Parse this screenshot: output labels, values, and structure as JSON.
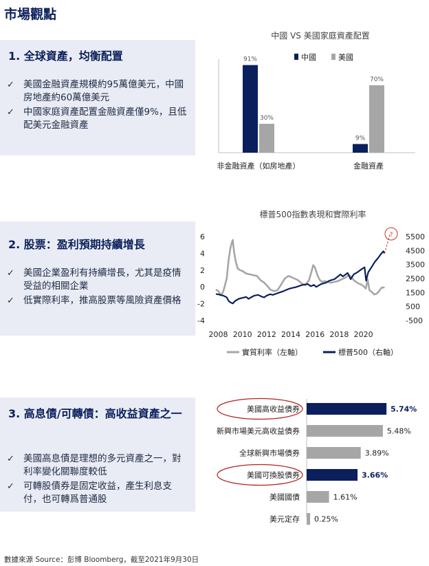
{
  "page_title": "市場觀點",
  "sections": [
    {
      "heading": "1.  全球資產，均衡配置",
      "bullets": [
        "美國金融資產規模約95萬億美元，中國房地產約60萬億美元",
        "中國家庭資產配置金融資產僅9%，且低配美元金融資產"
      ]
    },
    {
      "heading": "2.  股票：盈利預期持續增長",
      "bullets": [
        "美國企業盈利有持續增長，尤其是疫情受益的相關企業",
        "低實際利率，推高股票等風險資產價格"
      ]
    },
    {
      "heading": "3.  高息債/可轉債：高收益資產之一",
      "bullets": [
        "美國高息債是理想的多元資產之一，對利率變化關聯度較低",
        "可轉股債券是固定收益，產生利息支付，也可轉爲普通股"
      ]
    }
  ],
  "footer": "數據來源 Source：彭博 Bloomberg，截至2021年9月30日",
  "colors": {
    "navy": "#0b1f5c",
    "gray": "#a6a6a6",
    "red_circle": "#b22222"
  },
  "chart_data": [
    {
      "type": "bar",
      "title": "中國 VS 美國家庭資產配置",
      "categories": [
        "非金融資產（如房地產）",
        "金融資產"
      ],
      "series": [
        {
          "name": "中國",
          "values": [
            91,
            9
          ],
          "labels": [
            "91%",
            "9%"
          ]
        },
        {
          "name": "美國",
          "values": [
            30,
            70
          ],
          "labels": [
            "30%",
            "70%"
          ]
        }
      ],
      "ylim": [
        0,
        100
      ],
      "legend": "top",
      "grid": false
    },
    {
      "type": "line",
      "title": "標普500指數表現和實際利率",
      "x_ticks": [
        "2008",
        "2010",
        "2012",
        "2014",
        "2016",
        "2018",
        "2020"
      ],
      "y_left_ticks": [
        "6",
        "4",
        "2",
        "0",
        "-2",
        "-4"
      ],
      "y_right_ticks": [
        "5500",
        "4500",
        "3500",
        "2500",
        "1500",
        "500",
        "-500"
      ],
      "y_left_range": [
        -4,
        6
      ],
      "y_right_range": [
        -500,
        5500
      ],
      "legend": "bottom",
      "grid": false,
      "annotation": "?",
      "series": [
        {
          "name": "實質利率（左軸）",
          "axis": "left",
          "points": [
            [
              2007.8,
              -0.3
            ],
            [
              2008.0,
              -0.5
            ],
            [
              2008.2,
              -1.0
            ],
            [
              2008.4,
              -0.6
            ],
            [
              2008.55,
              0.2
            ],
            [
              2008.7,
              1.0
            ],
            [
              2008.85,
              3.2
            ],
            [
              2009.0,
              4.6
            ],
            [
              2009.1,
              5.2
            ],
            [
              2009.2,
              5.6
            ],
            [
              2009.3,
              4.2
            ],
            [
              2009.45,
              3.0
            ],
            [
              2009.6,
              2.2
            ],
            [
              2009.8,
              2.0
            ],
            [
              2010.0,
              1.9
            ],
            [
              2010.3,
              1.6
            ],
            [
              2010.6,
              1.5
            ],
            [
              2010.9,
              1.4
            ],
            [
              2011.2,
              1.3
            ],
            [
              2011.5,
              0.8
            ],
            [
              2011.8,
              0.5
            ],
            [
              2012.0,
              0.2
            ],
            [
              2012.3,
              -0.3
            ],
            [
              2012.6,
              -0.5
            ],
            [
              2012.9,
              -0.4
            ],
            [
              2013.2,
              0.3
            ],
            [
              2013.5,
              1.0
            ],
            [
              2013.8,
              1.3
            ],
            [
              2014.0,
              1.2
            ],
            [
              2014.3,
              1.0
            ],
            [
              2014.6,
              0.8
            ],
            [
              2014.9,
              0.4
            ],
            [
              2015.2,
              0.2
            ],
            [
              2015.5,
              0.8
            ],
            [
              2015.7,
              1.8
            ],
            [
              2015.85,
              2.6
            ],
            [
              2016.0,
              2.3
            ],
            [
              2016.2,
              1.4
            ],
            [
              2016.4,
              0.8
            ],
            [
              2016.6,
              0.6
            ],
            [
              2016.8,
              0.7
            ],
            [
              2017.0,
              0.6
            ],
            [
              2017.3,
              0.5
            ],
            [
              2017.6,
              0.6
            ],
            [
              2017.9,
              0.7
            ],
            [
              2018.2,
              0.9
            ],
            [
              2018.5,
              1.1
            ],
            [
              2018.8,
              1.4
            ],
            [
              2019.0,
              1.2
            ],
            [
              2019.2,
              0.8
            ],
            [
              2019.4,
              0.6
            ],
            [
              2019.6,
              0.4
            ],
            [
              2019.8,
              0.3
            ],
            [
              2020.0,
              0.1
            ],
            [
              2020.2,
              -0.2
            ],
            [
              2020.35,
              0.9
            ],
            [
              2020.5,
              -0.4
            ],
            [
              2020.7,
              -0.6
            ],
            [
              2020.9,
              -0.9
            ],
            [
              2021.1,
              -0.8
            ],
            [
              2021.3,
              -0.5
            ],
            [
              2021.5,
              -0.1
            ],
            [
              2021.75,
              -0.05
            ]
          ]
        },
        {
          "name": "標普500（右軸）",
          "axis": "right",
          "points": [
            [
              2007.8,
              1400
            ],
            [
              2008.1,
              1350
            ],
            [
              2008.4,
              1280
            ],
            [
              2008.7,
              1150
            ],
            [
              2008.85,
              900
            ],
            [
              2009.0,
              800
            ],
            [
              2009.2,
              720
            ],
            [
              2009.4,
              900
            ],
            [
              2009.7,
              1050
            ],
            [
              2010.0,
              1120
            ],
            [
              2010.3,
              1180
            ],
            [
              2010.5,
              1050
            ],
            [
              2010.8,
              1200
            ],
            [
              2011.0,
              1280
            ],
            [
              2011.3,
              1330
            ],
            [
              2011.6,
              1200
            ],
            [
              2011.8,
              1150
            ],
            [
              2012.0,
              1280
            ],
            [
              2012.3,
              1380
            ],
            [
              2012.5,
              1330
            ],
            [
              2012.8,
              1420
            ],
            [
              2013.0,
              1480
            ],
            [
              2013.4,
              1600
            ],
            [
              2013.8,
              1750
            ],
            [
              2014.0,
              1800
            ],
            [
              2014.4,
              1880
            ],
            [
              2014.8,
              2000
            ],
            [
              2015.0,
              2050
            ],
            [
              2015.4,
              2100
            ],
            [
              2015.65,
              1950
            ],
            [
              2015.9,
              2050
            ],
            [
              2016.1,
              1900
            ],
            [
              2016.5,
              2100
            ],
            [
              2016.9,
              2200
            ],
            [
              2017.2,
              2350
            ],
            [
              2017.6,
              2450
            ],
            [
              2017.9,
              2650
            ],
            [
              2018.1,
              2800
            ],
            [
              2018.3,
              2650
            ],
            [
              2018.7,
              2900
            ],
            [
              2018.95,
              2450
            ],
            [
              2019.2,
              2800
            ],
            [
              2019.5,
              2950
            ],
            [
              2019.9,
              3200
            ],
            [
              2020.1,
              3300
            ],
            [
              2020.22,
              2350
            ],
            [
              2020.4,
              2950
            ],
            [
              2020.7,
              3350
            ],
            [
              2020.95,
              3700
            ],
            [
              2021.2,
              3950
            ],
            [
              2021.45,
              4250
            ],
            [
              2021.65,
              4450
            ],
            [
              2021.75,
              4300
            ]
          ]
        }
      ],
      "projection": [
        [
          2021.75,
          4300
        ],
        [
          2022.2,
          5700
        ]
      ]
    },
    {
      "type": "bar",
      "orientation": "horizontal",
      "categories": [
        "美國高收益債券",
        "新興市場美元高收益債券",
        "全球新興市場債券",
        "美國可換股債券",
        "美國國債",
        "美元定存"
      ],
      "values": [
        5.74,
        5.48,
        3.89,
        3.66,
        1.61,
        0.25
      ],
      "labels": [
        "5.74%",
        "5.48%",
        "3.89%",
        "3.66%",
        "1.61%",
        "0.25%"
      ],
      "highlighted": [
        "美國高收益債券",
        "美國可換股債券"
      ],
      "xlim": [
        0,
        6.5
      ],
      "grid": false
    }
  ]
}
